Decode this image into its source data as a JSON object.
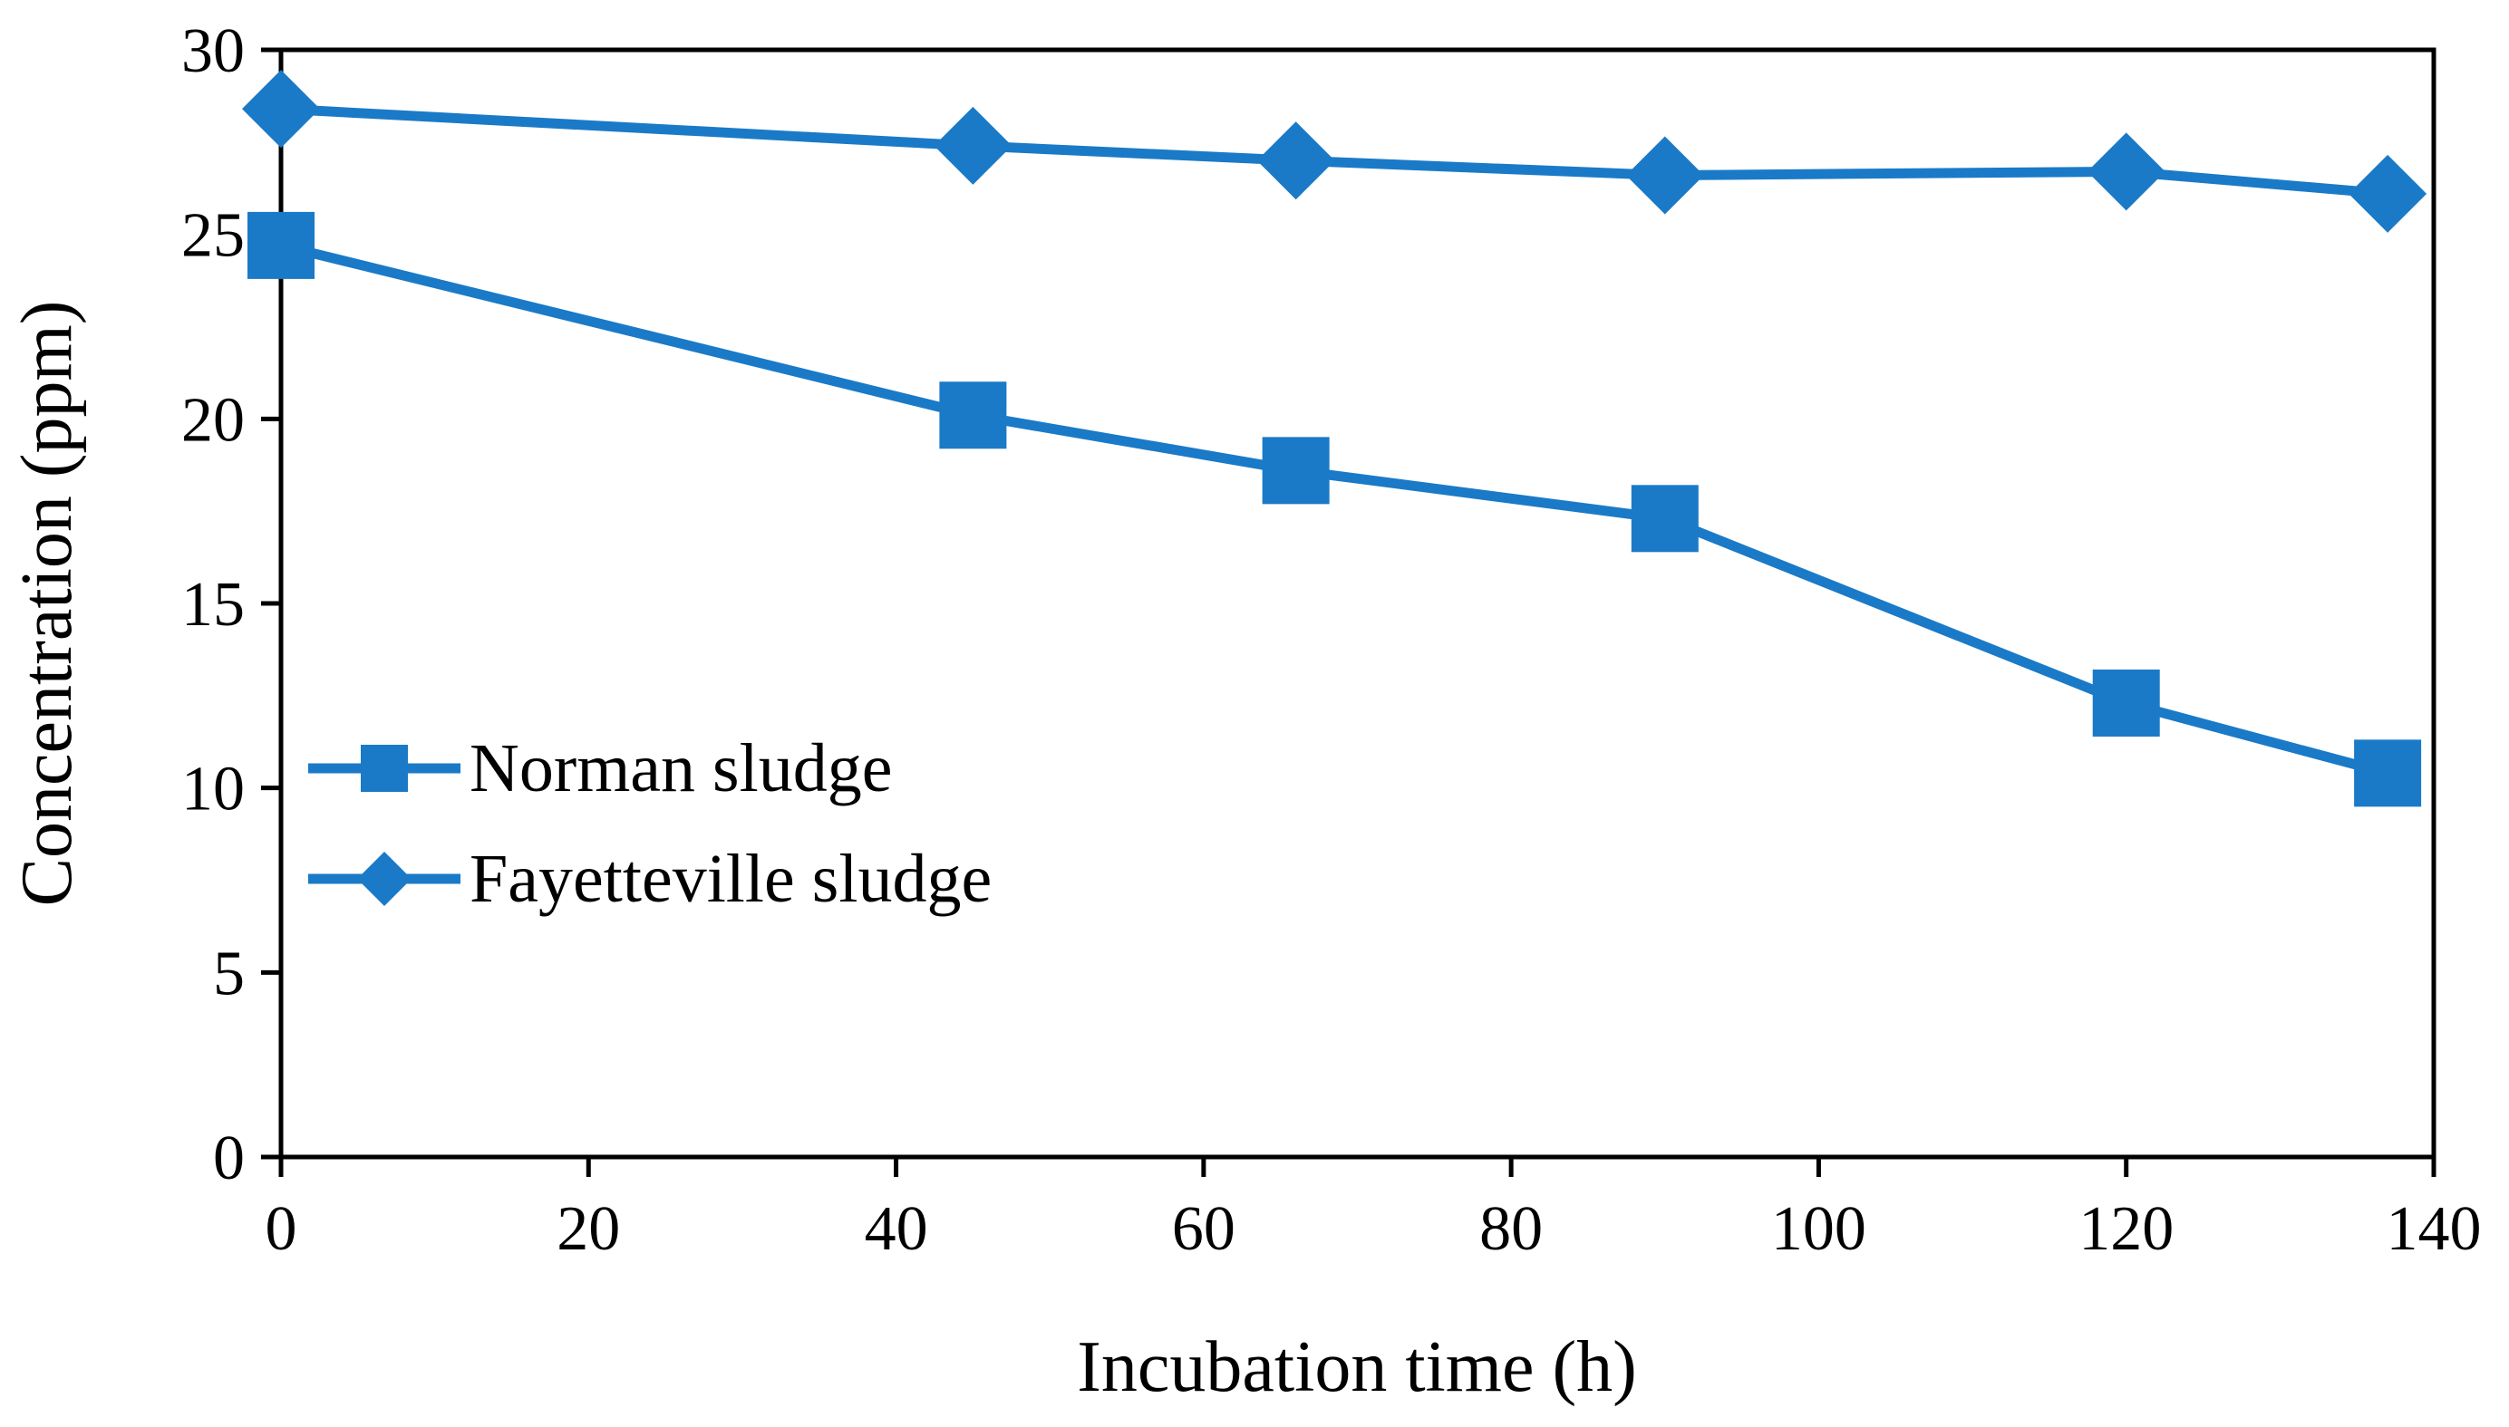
{
  "chart_data": {
    "type": "line",
    "title": "",
    "xlabel": "Incubation time (h)",
    "ylabel": "Concentration (ppm)",
    "xlim": [
      0,
      140
    ],
    "ylim": [
      0,
      30
    ],
    "xticks": [
      0,
      20,
      40,
      60,
      80,
      100,
      120,
      140
    ],
    "yticks": [
      0,
      5,
      10,
      15,
      20,
      25,
      30
    ],
    "grid": false,
    "legend": "center-left",
    "color": "#1a7ac7",
    "series": [
      {
        "name": "Norman sludge",
        "marker": "square",
        "x": [
          0,
          45,
          66,
          90,
          120,
          137
        ],
        "values": [
          24.7,
          20.1,
          18.6,
          17.3,
          12.3,
          10.4
        ]
      },
      {
        "name": "Fayetteville sludge",
        "marker": "diamond",
        "x": [
          0,
          45,
          66,
          90,
          120,
          137
        ],
        "values": [
          28.4,
          27.4,
          27.0,
          26.6,
          26.7,
          26.1
        ]
      }
    ]
  }
}
